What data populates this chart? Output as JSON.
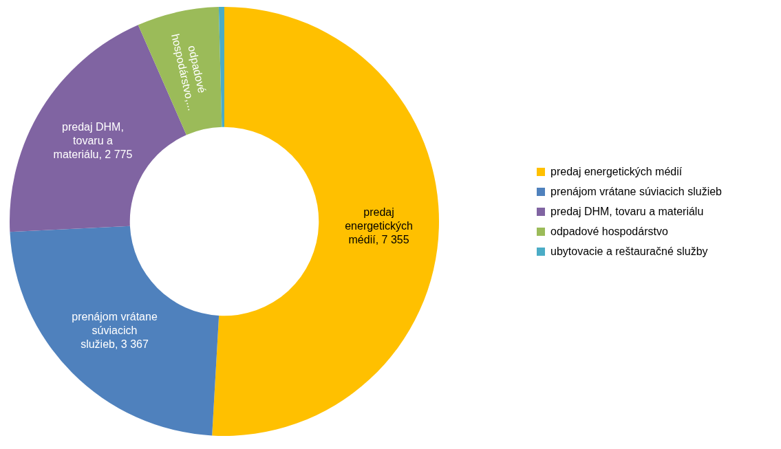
{
  "chart_data": {
    "type": "donut",
    "categories": [
      "predaj energetických médií",
      "prenájom vrátane súviacich služieb",
      "predaj DHM, tovaru a materiálu",
      "odpadové hospodárstvo",
      "ubytovacie a reštauračné služby"
    ],
    "values": [
      7355,
      3367,
      2775,
      890,
      60
    ],
    "colors": [
      "#ffc000",
      "#4f81bd",
      "#8064a2",
      "#9bbb59",
      "#4bacc6"
    ],
    "value_labels": [
      "predaj energetických médií, 7 355",
      "prenájom vrátane súviacich služieb, 3 367",
      "predaj DHM, tovaru a materiálu, 2 775",
      "odpadové hospodárstvo,...",
      null
    ],
    "legend": "right"
  }
}
